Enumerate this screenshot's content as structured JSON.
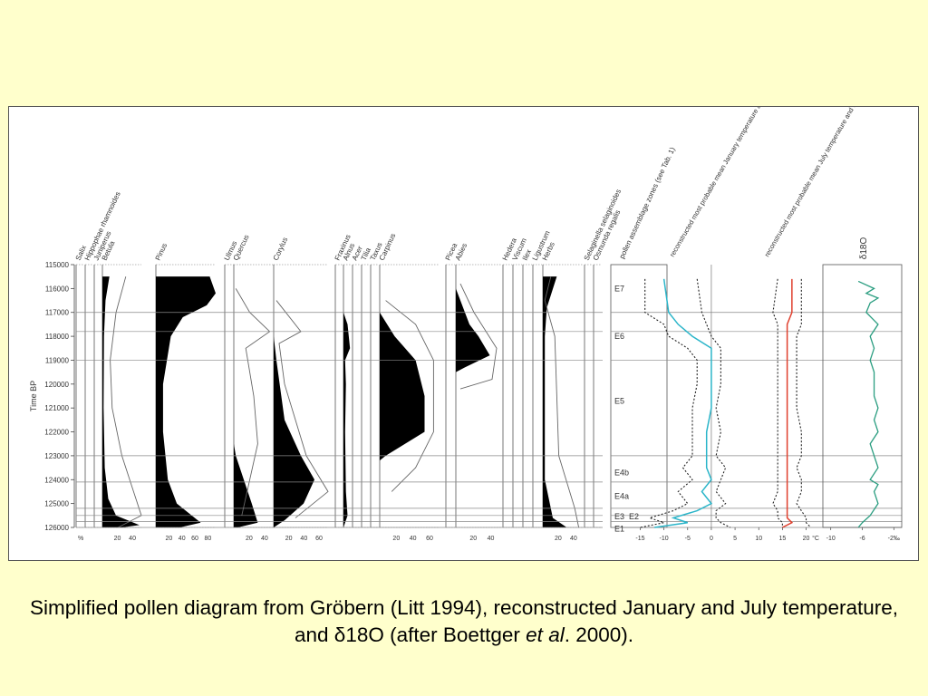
{
  "colors": {
    "background": "#ffffcc",
    "panel": "#ffffff",
    "fill": "#000000",
    "january_line": "#2bb5c9",
    "july_line": "#e0402e",
    "d18o_line": "#2a9d80",
    "grid": "#888888"
  },
  "caption": {
    "text_before_delta": "Simplified pollen diagram from Gröbern (Litt 1994), reconstructed January and July temperature, and ",
    "delta": "δ",
    "text_after_delta": "18O (after Boettger ",
    "et_al": "et al",
    "year": ". 2000)."
  },
  "chart_data": {
    "type": "area",
    "ylabel": "Time BP",
    "y_ticks": [
      "115000",
      "116000",
      "117000",
      "118000",
      "119000",
      "120000",
      "121000",
      "122000",
      "123000",
      "124000",
      "125000",
      "126000"
    ],
    "ylim": [
      115000,
      126000
    ],
    "y_reversed": true,
    "percent_unit": "%",
    "taxa_columns": [
      {
        "name": "Salix"
      },
      {
        "name": "Hippophae rhamnoides"
      },
      {
        "name": "Juniperus"
      },
      {
        "name": "Betula",
        "ticks": [
          "20",
          "40"
        ]
      },
      {
        "name": "Pinus",
        "ticks": [
          "20",
          "40",
          "60",
          "80"
        ]
      },
      {
        "name": "Ulmus"
      },
      {
        "name": "Quercus",
        "ticks": [
          "20",
          "40"
        ]
      },
      {
        "name": "Corylus",
        "ticks": [
          "20",
          "40",
          "60"
        ]
      },
      {
        "name": "Fraxinus"
      },
      {
        "name": "Alnus"
      },
      {
        "name": "Acer"
      },
      {
        "name": "Tilia"
      },
      {
        "name": "Taxus"
      },
      {
        "name": "Carpinus",
        "ticks": [
          "20",
          "40",
          "60"
        ]
      },
      {
        "name": "Picea"
      },
      {
        "name": "Abies",
        "ticks": [
          "20",
          "40"
        ]
      },
      {
        "name": "Hedera"
      },
      {
        "name": "Viscum"
      },
      {
        "name": "Ilex"
      },
      {
        "name": "Ligustrum"
      },
      {
        "name": "Herbs",
        "ticks": [
          "20",
          "40"
        ]
      },
      {
        "name": "Selaginella selaginoides"
      },
      {
        "name": "Osmunda regalis"
      }
    ],
    "zone_header": "pollen assemblage zones (see Tab. 1)",
    "zones": [
      {
        "label": "E7",
        "center": 116000
      },
      {
        "label": "E6",
        "center": 118000
      },
      {
        "label": "E5",
        "center": 120700
      },
      {
        "label": "E4b",
        "center": 123700
      },
      {
        "label": "E4a",
        "center": 124700
      },
      {
        "label": "E3",
        "center": 125550
      },
      {
        "label": "E2",
        "center": 125550
      },
      {
        "label": "E1",
        "center": 126050
      }
    ],
    "zone_boundaries": [
      117000,
      117800,
      119000,
      123000,
      124100,
      125200,
      125500,
      125750,
      126000
    ],
    "january_header": "reconstructed most probable mean January temperature and 90% uncertainty range",
    "july_header": "reconstructed most probable mean July temperature and 90% uncertainty range",
    "temp_ticks": [
      "-15",
      "-10",
      "-5",
      "0",
      "5",
      "10",
      "15",
      "20"
    ],
    "temp_unit": "°C",
    "january_temp": {
      "time": [
        115600,
        117000,
        117500,
        118000,
        118500,
        119000,
        120000,
        121000,
        122000,
        123000,
        123500,
        124000,
        124500,
        125000,
        125300,
        125600,
        125800,
        126000
      ],
      "mean": [
        -10,
        -9,
        -7,
        -4,
        0,
        0,
        0,
        0,
        -1,
        -1,
        -1,
        0,
        -2,
        0,
        -3,
        -8,
        -5,
        -12
      ],
      "lower": [
        -14,
        -14,
        -10,
        -9,
        -5,
        -3,
        -3,
        -4,
        -4,
        -4,
        -6,
        -4,
        -7,
        -5,
        -8,
        -13,
        -10,
        -15
      ],
      "upper": [
        -3,
        -2,
        -1,
        0,
        2,
        2,
        2,
        1,
        2,
        1,
        3,
        2,
        1,
        3,
        1,
        1,
        2,
        4
      ]
    },
    "july_temp": {
      "time": [
        115600,
        117000,
        117500,
        118000,
        118500,
        119000,
        120000,
        121000,
        122000,
        123000,
        123500,
        124000,
        124500,
        125000,
        125300,
        125600,
        125800,
        126000
      ],
      "mean": [
        17,
        17,
        16,
        16,
        16,
        16,
        16,
        16,
        16,
        16,
        16,
        16,
        16,
        16,
        16,
        16,
        17,
        15
      ],
      "lower": [
        14,
        13,
        14,
        14,
        14,
        14,
        14,
        14,
        14,
        14,
        14,
        14,
        14,
        13,
        14,
        14,
        15,
        15
      ],
      "upper": [
        19,
        19,
        19,
        18,
        18,
        18,
        18,
        18,
        19,
        19,
        18,
        19,
        19,
        18,
        19,
        20,
        20,
        21
      ]
    },
    "d18o_header": "δ18O",
    "d18o_ticks": [
      "-10",
      "-6",
      "-2‰"
    ],
    "d18o": {
      "time": [
        115700,
        116000,
        116200,
        116400,
        116600,
        117000,
        117500,
        118000,
        118500,
        119000,
        119500,
        120000,
        120500,
        121000,
        121500,
        122000,
        122500,
        123000,
        123500,
        124000,
        124200,
        124500,
        125000,
        125500,
        125800,
        126000
      ],
      "value": [
        -6.5,
        -4.5,
        -5.5,
        -4,
        -5,
        -5.5,
        -4,
        -5,
        -4.5,
        -5,
        -4.5,
        -4.5,
        -4.5,
        -4,
        -4.5,
        -4,
        -5,
        -4.5,
        -4,
        -5,
        -4,
        -4.5,
        -4,
        -5,
        -6,
        -6.5
      ]
    }
  }
}
